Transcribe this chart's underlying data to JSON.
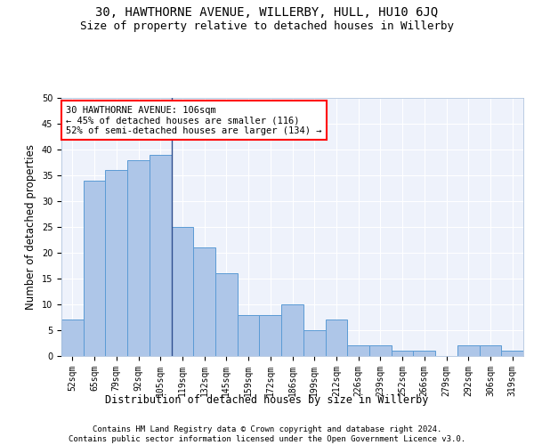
{
  "title1": "30, HAWTHORNE AVENUE, WILLERBY, HULL, HU10 6JQ",
  "title2": "Size of property relative to detached houses in Willerby",
  "xlabel": "Distribution of detached houses by size in Willerby",
  "ylabel": "Number of detached properties",
  "categories": [
    "52sqm",
    "65sqm",
    "79sqm",
    "92sqm",
    "105sqm",
    "119sqm",
    "132sqm",
    "145sqm",
    "159sqm",
    "172sqm",
    "186sqm",
    "199sqm",
    "212sqm",
    "226sqm",
    "239sqm",
    "252sqm",
    "266sqm",
    "279sqm",
    "292sqm",
    "306sqm",
    "319sqm"
  ],
  "values": [
    7,
    34,
    36,
    38,
    39,
    25,
    21,
    16,
    8,
    8,
    10,
    5,
    7,
    2,
    2,
    1,
    1,
    0,
    2,
    2,
    1
  ],
  "bar_color": "#aec6e8",
  "bar_edge_color": "#5b9bd5",
  "vline_x_index": 4,
  "vline_color": "#2f4f8f",
  "annotation_text": "30 HAWTHORNE AVENUE: 106sqm\n← 45% of detached houses are smaller (116)\n52% of semi-detached houses are larger (134) →",
  "annotation_box_color": "white",
  "annotation_box_edge_color": "red",
  "ylim": [
    0,
    50
  ],
  "yticks": [
    0,
    5,
    10,
    15,
    20,
    25,
    30,
    35,
    40,
    45,
    50
  ],
  "footnote": "Contains HM Land Registry data © Crown copyright and database right 2024.\nContains public sector information licensed under the Open Government Licence v3.0.",
  "background_color": "#eef2fb",
  "grid_color": "#ffffff",
  "title1_fontsize": 10,
  "title2_fontsize": 9,
  "xlabel_fontsize": 8.5,
  "ylabel_fontsize": 8.5,
  "tick_fontsize": 7,
  "annotation_fontsize": 7.5,
  "footnote_fontsize": 6.5
}
